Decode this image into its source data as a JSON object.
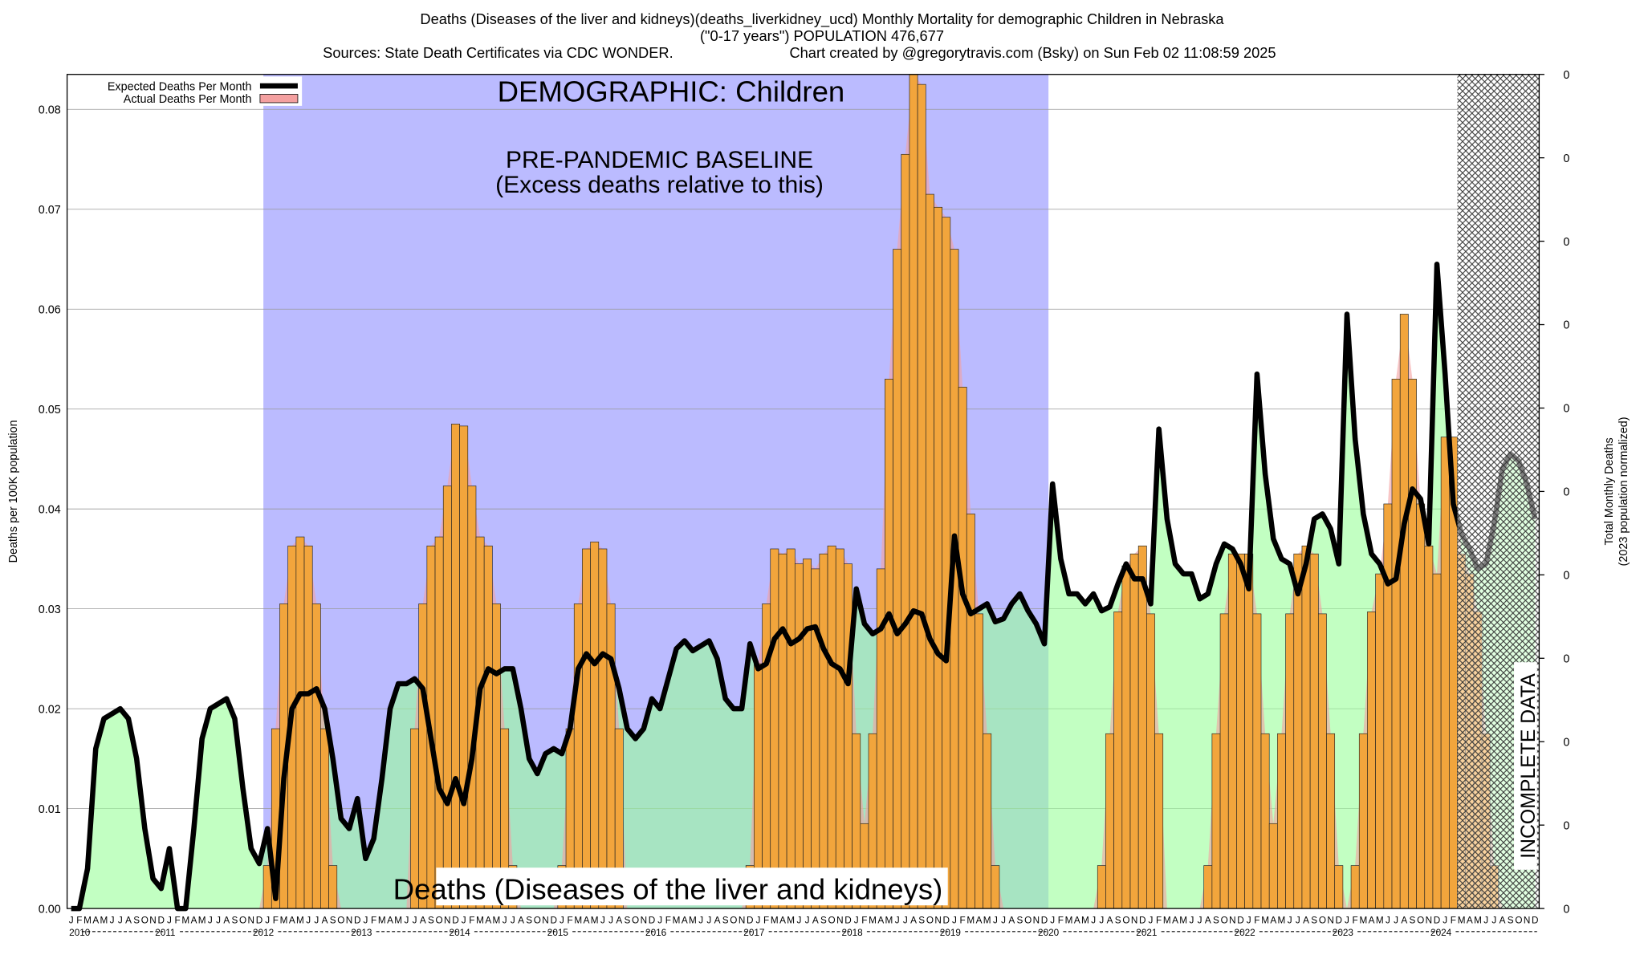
{
  "chart_data": {
    "type": "bar_line",
    "title": "Deaths (Diseases of the liver and kidneys)(deaths_liverkidney_ucd) Monthly Mortality for demographic Children in Nebraska",
    "subtitle": "(\"0-17 years\") POPULATION 476,677",
    "sources": "Sources: State Death Certificates via CDC WONDER.",
    "credit": "Chart created by @gregorytravis.com (Bsky) on Sun Feb 02 11:08:59 2025",
    "ylabel": "Deaths per 100K population",
    "y2label": [
      "Total Monthly Deaths",
      "(2023 population normalized)"
    ],
    "annotations": [
      "DEMOGRAPHIC: Children",
      "PRE-PANDEMIC BASELINE",
      "(Excess deaths relative to this)",
      "Deaths (Diseases of the liver and kidneys)",
      "INCOMPLETE DATA"
    ],
    "categories": [
      "J",
      "F",
      "M",
      "A",
      "M",
      "J",
      "J",
      "A",
      "S",
      "O",
      "N",
      "D",
      "J",
      "F",
      "M",
      "A",
      "M",
      "J",
      "J",
      "A",
      "S",
      "O",
      "N",
      "D",
      "J",
      "F",
      "M",
      "A",
      "M",
      "J",
      "J",
      "A",
      "S",
      "O",
      "N",
      "D",
      "J",
      "F",
      "M",
      "A",
      "M",
      "J",
      "J",
      "A",
      "S",
      "O",
      "N",
      "D",
      "J",
      "F",
      "M",
      "A",
      "M",
      "J",
      "J",
      "A",
      "S",
      "O",
      "N",
      "D",
      "J",
      "F",
      "M",
      "A",
      "M",
      "J",
      "J",
      "A",
      "S",
      "O",
      "N",
      "D",
      "J",
      "F",
      "M",
      "A",
      "M",
      "J",
      "J",
      "A",
      "S",
      "O",
      "N",
      "D",
      "J",
      "F",
      "M",
      "A",
      "M",
      "J",
      "J",
      "A",
      "S",
      "O",
      "N",
      "D",
      "J",
      "F",
      "M",
      "A",
      "M",
      "J",
      "J",
      "A",
      "S",
      "O",
      "N",
      "D",
      "J",
      "F",
      "M",
      "A",
      "M",
      "J",
      "J",
      "A",
      "S",
      "O",
      "N",
      "D",
      "J",
      "F",
      "M",
      "A",
      "M",
      "J",
      "J",
      "A",
      "S",
      "O",
      "N",
      "D",
      "J",
      "F",
      "M",
      "A",
      "M",
      "J",
      "J",
      "A",
      "S",
      "O",
      "N",
      "D",
      "J",
      "F",
      "M",
      "A",
      "M",
      "J",
      "J",
      "A",
      "S",
      "O",
      "N",
      "D",
      "J",
      "F",
      "M",
      "A",
      "M",
      "J",
      "J",
      "A",
      "S",
      "O",
      "N",
      "D",
      "J",
      "F",
      "M",
      "A",
      "M",
      "J",
      "J",
      "A",
      "S",
      "O",
      "N",
      "D"
    ],
    "years": [
      "2010",
      "2011",
      "2012",
      "2013",
      "2014",
      "2015",
      "2016",
      "2017",
      "2018",
      "2019",
      "2020",
      "2021",
      "2022",
      "2023",
      "2024"
    ],
    "series": [
      {
        "name": "Expected Deaths Per Month",
        "color": "#000000",
        "area_color": "#99ff99",
        "values": [
          0,
          0,
          0.004,
          0.016,
          0.019,
          0.0195,
          0.02,
          0.019,
          0.015,
          0.008,
          0.003,
          0.002,
          0.006,
          0,
          0,
          0.008,
          0.017,
          0.02,
          0.0205,
          0.021,
          0.019,
          0.012,
          0.006,
          0.0045,
          0.008,
          0.001,
          0.013,
          0.02,
          0.0215,
          0.0215,
          0.022,
          0.02,
          0.015,
          0.009,
          0.008,
          0.011,
          0.005,
          0.007,
          0.013,
          0.02,
          0.0225,
          0.0225,
          0.023,
          0.022,
          0.017,
          0.012,
          0.0105,
          0.013,
          0.0105,
          0.015,
          0.022,
          0.024,
          0.0235,
          0.024,
          0.024,
          0.02,
          0.015,
          0.0135,
          0.0155,
          0.016,
          0.0155,
          0.018,
          0.024,
          0.0255,
          0.0245,
          0.0255,
          0.025,
          0.022,
          0.018,
          0.017,
          0.018,
          0.021,
          0.02,
          0.023,
          0.026,
          0.0268,
          0.0258,
          0.0263,
          0.0268,
          0.025,
          0.021,
          0.02,
          0.02,
          0.0265,
          0.024,
          0.0245,
          0.027,
          0.028,
          0.0265,
          0.027,
          0.028,
          0.0282,
          0.026,
          0.0245,
          0.024,
          0.0225,
          0.032,
          0.0285,
          0.0275,
          0.028,
          0.0295,
          0.0275,
          0.0285,
          0.0298,
          0.0295,
          0.027,
          0.0255,
          0.0248,
          0.0373,
          0.0315,
          0.0295,
          0.03,
          0.0305,
          0.0287,
          0.029,
          0.0305,
          0.0315,
          0.0298,
          0.0285,
          0.0265,
          0.0425,
          0.035,
          0.0315,
          0.0315,
          0.0305,
          0.0315,
          0.0298,
          0.0302,
          0.0325,
          0.0345,
          0.033,
          0.033,
          0.0305,
          0.048,
          0.039,
          0.0345,
          0.0335,
          0.0335,
          0.031,
          0.0315,
          0.0345,
          0.0365,
          0.036,
          0.0345,
          0.032,
          0.0535,
          0.0435,
          0.037,
          0.035,
          0.0345,
          0.0315,
          0.0345,
          0.039,
          0.0395,
          0.038,
          0.0345,
          0.0595,
          0.047,
          0.0395,
          0.0355,
          0.0345,
          0.0325,
          0.033,
          0.0385,
          0.042,
          0.041,
          0.0365,
          0.0645,
          0.0535,
          0.0405,
          0.0375,
          0.036,
          0.034,
          0.0345,
          0.0385,
          0.044,
          0.0455,
          0.0448,
          0.0425,
          0.039
        ]
      },
      {
        "name": "Actual Deaths Per Month",
        "color": "#f4a0a0",
        "bar_color": "#f2a53c",
        "values": [
          0,
          0,
          0,
          0,
          0,
          0,
          0,
          0,
          0,
          0,
          0,
          0,
          0,
          0,
          0,
          0,
          0,
          0,
          0,
          0,
          0,
          0,
          0,
          0,
          0.0043,
          0.018,
          0.0305,
          0.0363,
          0.0372,
          0.0363,
          0.0305,
          0.018,
          0.0043,
          0,
          0,
          0,
          0,
          0,
          0,
          0,
          0,
          0,
          0.018,
          0.0305,
          0.0363,
          0.0372,
          0.0423,
          0.0485,
          0.0483,
          0.0423,
          0.0372,
          0.0363,
          0.0305,
          0.018,
          0.0043,
          0,
          0,
          0,
          0,
          0,
          0.0043,
          0.018,
          0.0305,
          0.036,
          0.0367,
          0.036,
          0.0305,
          0.018,
          0,
          0,
          0,
          0,
          0,
          0,
          0,
          0,
          0,
          0,
          0,
          0,
          0,
          0,
          0,
          0.0043,
          0.0245,
          0.0305,
          0.036,
          0.0355,
          0.036,
          0.0345,
          0.035,
          0.034,
          0.0355,
          0.0363,
          0.036,
          0.0345,
          0.0175,
          0.0085,
          0.0175,
          0.034,
          0.053,
          0.066,
          0.0755,
          0.0835,
          0.0825,
          0.0715,
          0.0702,
          0.0692,
          0.066,
          0.0522,
          0.0395,
          0.0295,
          0.0175,
          0.0043,
          0,
          0,
          0,
          0,
          0,
          0,
          0,
          0,
          0,
          0,
          0,
          0,
          0.0043,
          0.0175,
          0.0297,
          0.0343,
          0.0355,
          0.0363,
          0.0295,
          0.0175,
          0,
          0,
          0,
          0,
          0,
          0.0043,
          0.0175,
          0.0295,
          0.0355,
          0.0355,
          0.0355,
          0.0295,
          0.0175,
          0.0085,
          0.0175,
          0.0295,
          0.0355,
          0.0363,
          0.0355,
          0.0295,
          0.0175,
          0.0043,
          0,
          0.0043,
          0.0175,
          0.0297,
          0.0335,
          0.0405,
          0.053,
          0.0595,
          0.053,
          0.0405,
          0.0363,
          0.0335,
          0.0472,
          0.0472,
          0.0355,
          0.0335,
          0.0297,
          0.0175,
          0.0043,
          0,
          0,
          0,
          0,
          0
        ]
      }
    ],
    "ylim": [
      0,
      0.0835
    ],
    "yticks": [
      {
        "value": 0,
        "label": "0.00"
      },
      {
        "value": 0.01,
        "label": "0.01"
      },
      {
        "value": 0.02,
        "label": "0.02"
      },
      {
        "value": 0.03,
        "label": "0.03"
      },
      {
        "value": 0.04,
        "label": "0.04"
      },
      {
        "value": 0.05,
        "label": "0.05"
      },
      {
        "value": 0.06,
        "label": "0.06"
      },
      {
        "value": 0.07,
        "label": "0.07"
      },
      {
        "value": 0.08,
        "label": "0.08"
      }
    ],
    "y2lim": [
      0,
      0.398
    ],
    "y2ticks": [
      0,
      {
        "value": 0.0398,
        "label": "0"
      },
      {
        "value": 0.0796,
        "label": "0"
      },
      {
        "value": 0.1194,
        "label": "0"
      },
      {
        "value": 0.1592,
        "label": "0"
      },
      {
        "value": 0.199,
        "label": "0"
      },
      {
        "value": 0.2388,
        "label": "0"
      },
      {
        "value": 0.2786,
        "label": "0"
      },
      {
        "value": 0.3184,
        "label": "0"
      },
      {
        "value": 0.3582,
        "label": "0"
      },
      {
        "value": 0.398,
        "label": "0"
      }
    ],
    "grid": true
  }
}
